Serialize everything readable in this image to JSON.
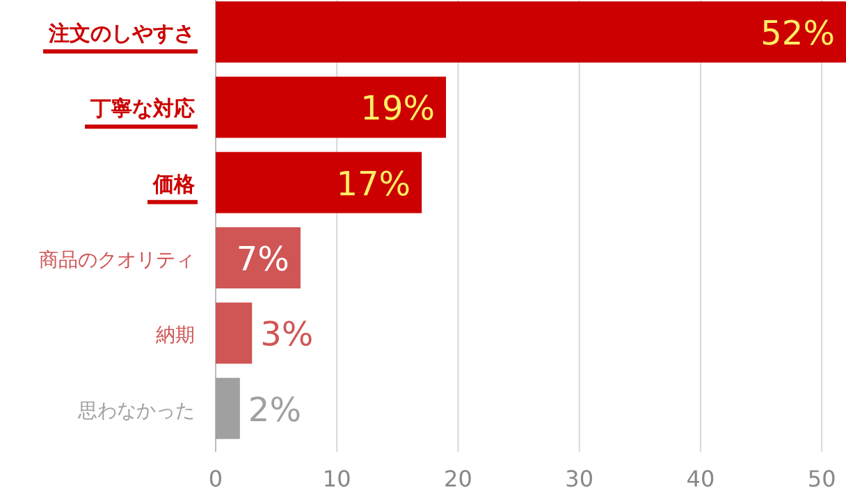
{
  "chart_data": {
    "type": "bar",
    "orientation": "horizontal",
    "categories": [
      "注文のしやすさ",
      "丁寧な対応",
      "価格",
      "商品のクオリティ",
      "納期",
      "思わなかった"
    ],
    "values": [
      52,
      19,
      17,
      7,
      3,
      2
    ],
    "colors": [
      "#cc0000",
      "#cc0000",
      "#cc0000",
      "#d05555",
      "#d05555",
      "#a0a0a0"
    ],
    "value_labels": [
      "52%",
      "19%",
      "17%",
      "7%",
      "3%",
      "2%"
    ],
    "xlim": [
      0,
      52
    ],
    "xticks": [
      0,
      10,
      20,
      30,
      40,
      50
    ],
    "grid": "x"
  }
}
